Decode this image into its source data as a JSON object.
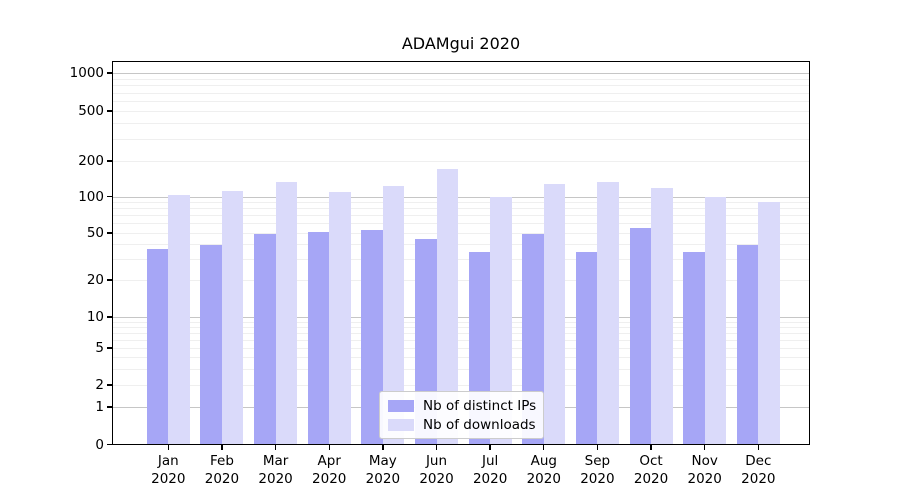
{
  "chart_data": {
    "type": "bar",
    "title": "ADAMgui 2020",
    "categories": [
      "Jan 2020",
      "Feb 2020",
      "Mar 2020",
      "Apr 2020",
      "May 2020",
      "Jun 2020",
      "Jul 2020",
      "Aug 2020",
      "Sep 2020",
      "Oct 2020",
      "Nov 2020",
      "Dec 2020"
    ],
    "x_ticks": [
      [
        "Jan",
        "2020"
      ],
      [
        "Feb",
        "2020"
      ],
      [
        "Mar",
        "2020"
      ],
      [
        "Apr",
        "2020"
      ],
      [
        "May",
        "2020"
      ],
      [
        "Jun",
        "2020"
      ],
      [
        "Jul",
        "2020"
      ],
      [
        "Aug",
        "2020"
      ],
      [
        "Sep",
        "2020"
      ],
      [
        "Oct",
        "2020"
      ],
      [
        "Nov",
        "2020"
      ],
      [
        "Dec",
        "2020"
      ]
    ],
    "series": [
      {
        "name": "Nb of distinct IPs",
        "color": "#a6a6f6",
        "values": [
          37,
          40,
          50,
          51,
          53,
          45,
          35,
          50,
          35,
          55,
          35,
          40
        ]
      },
      {
        "name": "Nb of downloads",
        "color": "#dadafa",
        "values": [
          105,
          113,
          135,
          111,
          123,
          173,
          101,
          130,
          135,
          120,
          100,
          91
        ]
      }
    ],
    "yscale": "symlog",
    "yticks": [
      1000,
      500,
      200,
      100,
      50,
      20,
      10,
      5,
      2,
      1,
      0
    ],
    "ylim": [
      0,
      1000
    ],
    "xlabel": "",
    "ylabel": "",
    "grid": "on",
    "legend_position": "lower center",
    "grid_major_color": "#c6c6c6",
    "grid_minor_color": "#efefef",
    "axis_color": "#000000"
  }
}
